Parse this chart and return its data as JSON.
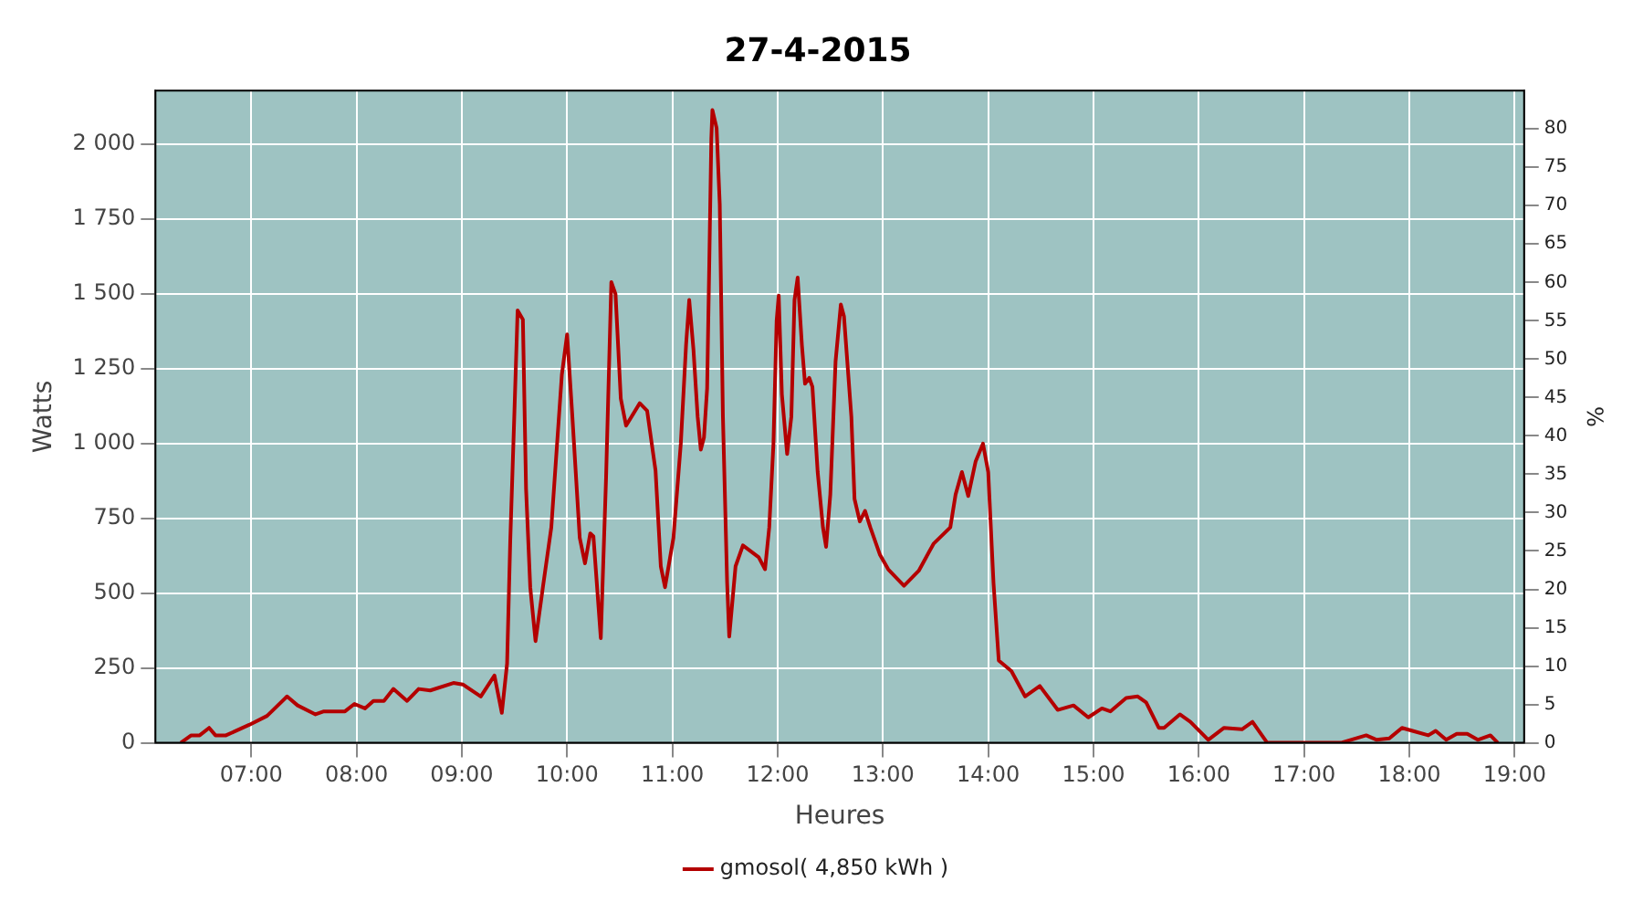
{
  "chart_data": {
    "type": "line",
    "title": "27-4-2015",
    "xlabel": "Heures",
    "ylabel": "Watts",
    "y2label": "%",
    "xlim": [
      6.09,
      19.09
    ],
    "xticks": [
      {
        "value": 7,
        "label": "07:00"
      },
      {
        "value": 8,
        "label": "08:00"
      },
      {
        "value": 9,
        "label": "09:00"
      },
      {
        "value": 10,
        "label": "10:00"
      },
      {
        "value": 11,
        "label": "11:00"
      },
      {
        "value": 12,
        "label": "12:00"
      },
      {
        "value": 13,
        "label": "13:00"
      },
      {
        "value": 14,
        "label": "14:00"
      },
      {
        "value": 15,
        "label": "15:00"
      },
      {
        "value": 16,
        "label": "16:00"
      },
      {
        "value": 17,
        "label": "17:00"
      },
      {
        "value": 18,
        "label": "18:00"
      },
      {
        "value": 19,
        "label": "19:00"
      }
    ],
    "ylim": [
      0,
      2180
    ],
    "yticks": [
      0,
      250,
      500,
      750,
      {
        "value": 1000,
        "label": "1 000"
      },
      {
        "value": 1250,
        "label": "1 250"
      },
      {
        "value": 1500,
        "label": "1 500"
      },
      {
        "value": 1750,
        "label": "1 750"
      },
      {
        "value": 2000,
        "label": "2 000"
      }
    ],
    "y2lim": [
      0,
      85
    ],
    "y2ticks": [
      0,
      5,
      10,
      15,
      20,
      25,
      30,
      35,
      40,
      45,
      50,
      55,
      60,
      65,
      70,
      75,
      80
    ],
    "grid": true,
    "legend": "bottom",
    "marker": "none",
    "line_style": "solid",
    "series": [
      {
        "name": "gmosol( 4,850 kWh )",
        "color": "#b40000",
        "x": [
          6.33,
          6.43,
          6.51,
          6.6,
          6.66,
          6.76,
          6.98,
          7.15,
          7.34,
          7.44,
          7.61,
          7.69,
          7.89,
          7.98,
          8.08,
          8.16,
          8.26,
          8.35,
          8.48,
          8.59,
          8.7,
          8.92,
          9.01,
          9.18,
          9.31,
          9.38,
          9.43,
          9.46,
          9.5,
          9.53,
          9.58,
          9.61,
          9.65,
          9.7,
          9.77,
          9.85,
          9.95,
          10,
          10.05,
          10.12,
          10.17,
          10.22,
          10.25,
          10.32,
          10.37,
          10.42,
          10.46,
          10.51,
          10.56,
          10.69,
          10.76,
          10.84,
          10.89,
          10.93,
          11.01,
          11.08,
          11.13,
          11.16,
          11.2,
          11.24,
          11.27,
          11.3,
          11.33,
          11.35,
          11.37,
          11.38,
          11.42,
          11.45,
          11.48,
          11.52,
          11.54,
          11.6,
          11.67,
          11.82,
          11.88,
          11.92,
          11.96,
          11.99,
          12.01,
          12.04,
          12.09,
          12.13,
          12.16,
          12.19,
          12.23,
          12.26,
          12.3,
          12.33,
          12.38,
          12.43,
          12.46,
          12.5,
          12.55,
          12.6,
          12.63,
          12.7,
          12.73,
          12.78,
          12.83,
          12.88,
          12.97,
          13.05,
          13.2,
          13.34,
          13.48,
          13.64,
          13.69,
          13.75,
          13.81,
          13.88,
          13.95,
          14,
          14.05,
          14.1,
          14.22,
          14.35,
          14.49,
          14.66,
          14.81,
          14.95,
          15.08,
          15.16,
          15.31,
          15.42,
          15.5,
          15.62,
          15.67,
          15.82,
          15.92,
          16.09,
          16.24,
          16.41,
          16.51,
          16.65,
          17.35,
          17.59,
          17.69,
          17.81,
          17.93,
          18.03,
          18.18,
          18.25,
          18.35,
          18.45,
          18.55,
          18.65,
          18.77,
          18.84
        ],
        "values": [
          0,
          25,
          25,
          50,
          25,
          25,
          60,
          90,
          155,
          125,
          95,
          105,
          105,
          130,
          115,
          140,
          140,
          180,
          140,
          180,
          175,
          200,
          195,
          155,
          225,
          100,
          265,
          675,
          1110,
          1445,
          1415,
          850,
          520,
          340,
          520,
          720,
          1230,
          1365,
          1090,
          685,
          600,
          700,
          690,
          350,
          885,
          1540,
          1500,
          1150,
          1060,
          1135,
          1110,
          910,
          590,
          520,
          685,
          1000,
          1330,
          1480,
          1315,
          1090,
          980,
          1020,
          1185,
          1595,
          2020,
          2115,
          2055,
          1800,
          1090,
          535,
          355,
          590,
          660,
          620,
          580,
          720,
          1000,
          1410,
          1495,
          1165,
          965,
          1090,
          1480,
          1555,
          1330,
          1200,
          1220,
          1190,
          905,
          720,
          655,
          830,
          1275,
          1465,
          1425,
          1090,
          815,
          740,
          775,
          720,
          630,
          580,
          525,
          575,
          665,
          720,
          830,
          905,
          825,
          940,
          1000,
          905,
          535,
          275,
          240,
          155,
          190,
          110,
          125,
          85,
          115,
          105,
          150,
          155,
          135,
          50,
          50,
          95,
          70,
          10,
          50,
          45,
          70,
          0,
          0,
          25,
          10,
          15,
          50,
          40,
          25,
          40,
          10,
          30,
          30,
          10,
          25,
          0
        ]
      }
    ]
  }
}
